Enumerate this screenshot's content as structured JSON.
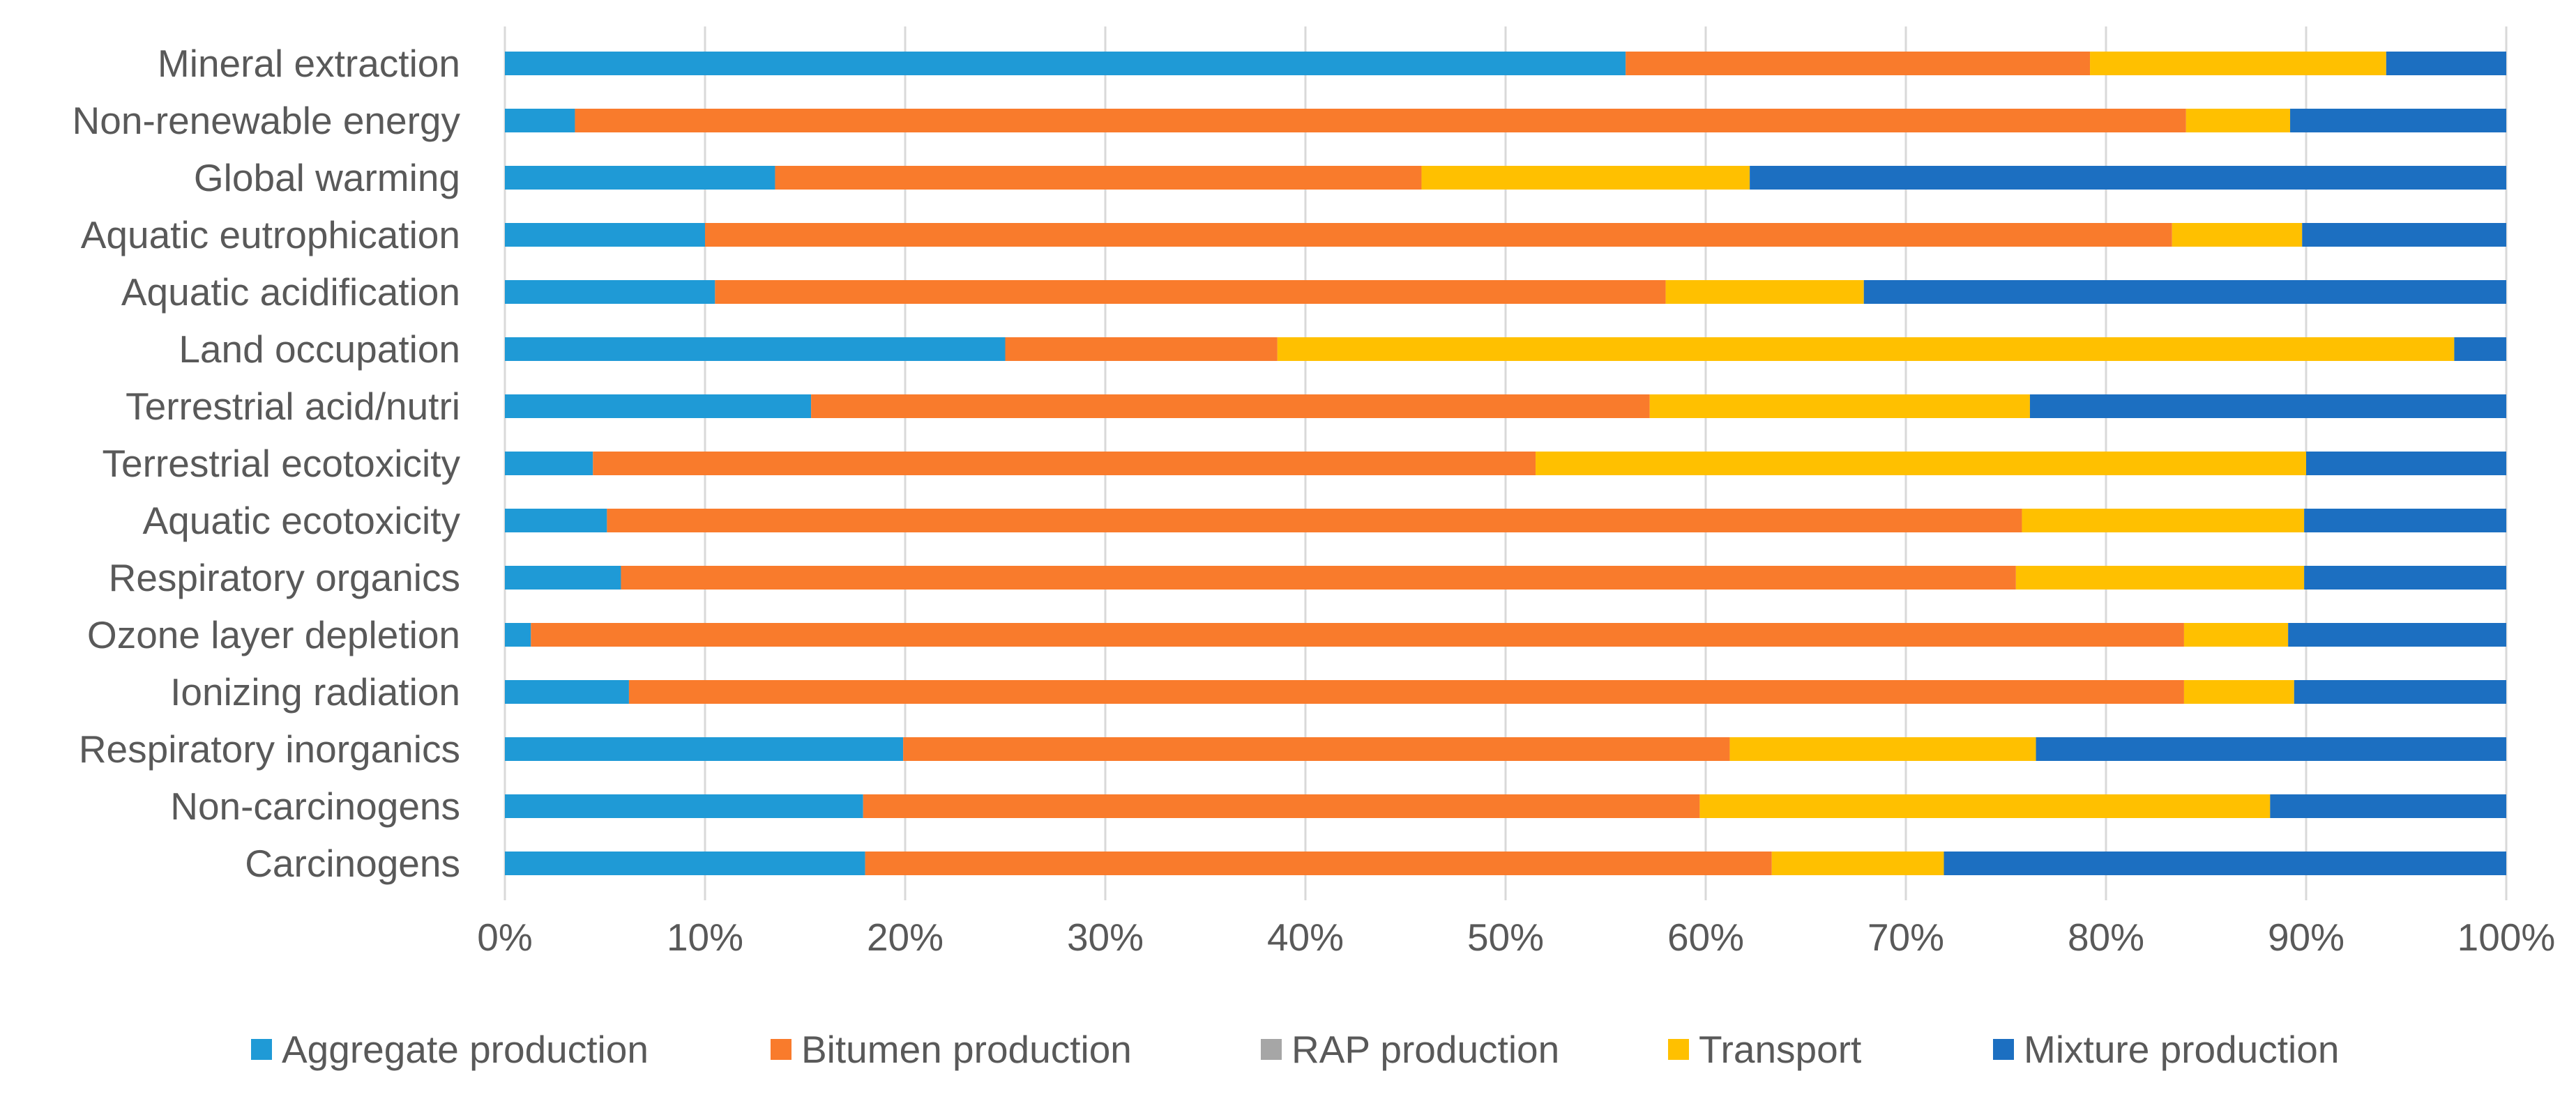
{
  "chart_data": {
    "type": "bar",
    "orientation": "horizontal",
    "stacking": "percent",
    "title": "",
    "xlabel": "",
    "ylabel": "",
    "xlim": [
      0,
      100
    ],
    "x_ticks": [
      "0%",
      "10%",
      "20%",
      "30%",
      "40%",
      "50%",
      "60%",
      "70%",
      "80%",
      "90%",
      "100%"
    ],
    "grid": "vertical",
    "legend_position": "bottom",
    "categories": [
      "Mineral extraction",
      "Non-renewable energy",
      "Global warming",
      "Aquatic eutrophication",
      "Aquatic acidification",
      "Land occupation",
      "Terrestrial acid/nutri",
      "Terrestrial ecotoxicity",
      "Aquatic ecotoxicity",
      "Respiratory organics",
      "Ozone layer depletion",
      "Ionizing radiation",
      "Respiratory inorganics",
      "Non-carcinogens",
      "Carcinogens"
    ],
    "series": [
      {
        "name": "Aggregate production",
        "color": "#1f9ad6",
        "values": [
          56.0,
          3.5,
          13.5,
          10.0,
          10.5,
          25.0,
          15.3,
          4.4,
          5.1,
          5.8,
          1.3,
          6.2,
          19.9,
          17.9,
          18.0
        ]
      },
      {
        "name": "Bitumen production",
        "color": "#f97b2c",
        "values": [
          23.2,
          80.5,
          32.3,
          73.3,
          47.5,
          13.6,
          41.9,
          47.1,
          70.7,
          69.7,
          82.6,
          77.7,
          41.3,
          41.8,
          45.3
        ]
      },
      {
        "name": "RAP production",
        "color": "#a6a6a6",
        "values": [
          0,
          0,
          0,
          0,
          0,
          0,
          0,
          0,
          0,
          0,
          0,
          0,
          0,
          0,
          0
        ]
      },
      {
        "name": "Transport",
        "color": "#ffc000",
        "values": [
          14.8,
          5.2,
          16.4,
          6.5,
          9.9,
          58.8,
          19.0,
          38.5,
          14.1,
          14.4,
          5.2,
          5.5,
          15.3,
          28.5,
          8.6
        ]
      },
      {
        "name": "Mixture production",
        "color": "#1c6fc1",
        "values": [
          6.0,
          10.8,
          37.8,
          10.2,
          32.1,
          2.6,
          23.8,
          10.0,
          10.1,
          10.1,
          10.9,
          10.6,
          23.5,
          11.8,
          28.1
        ]
      }
    ]
  }
}
